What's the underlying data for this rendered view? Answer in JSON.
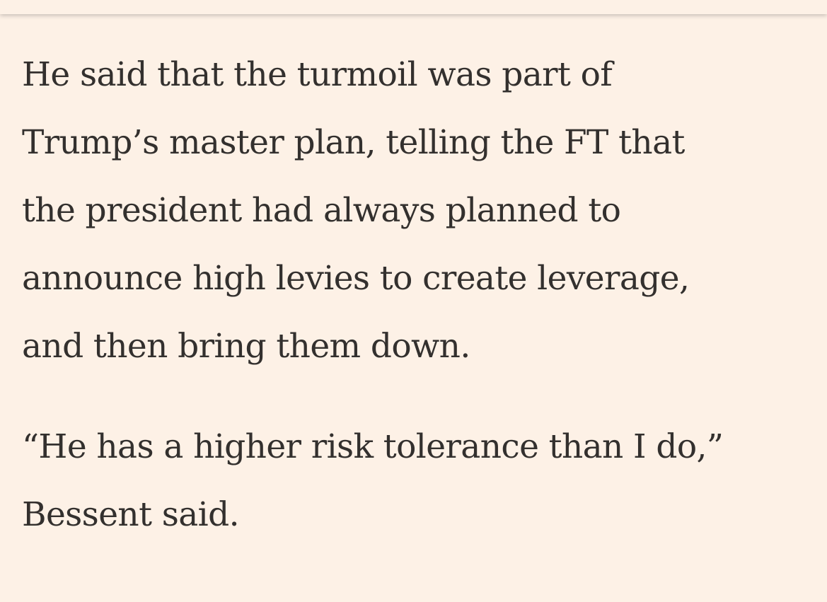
{
  "article": {
    "paragraphs": [
      {
        "lines": [
          "He said that the turmoil was part of",
          "Trump’s master plan, telling the FT that",
          "the president had always planned to",
          "announce high levies to create leverage,",
          "and then bring them down."
        ]
      },
      {
        "lines": [
          "“He has a higher risk tolerance than I do,”",
          "Bessent said."
        ]
      }
    ]
  },
  "colors": {
    "background": "#fdf1e6",
    "text": "#33302e"
  }
}
